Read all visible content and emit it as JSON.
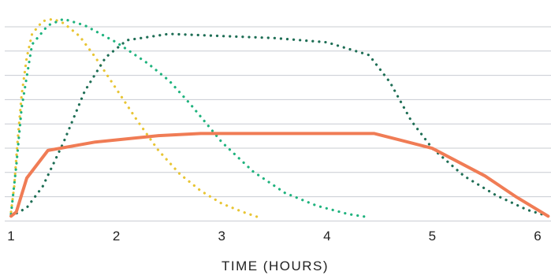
{
  "chart_data": {
    "type": "line",
    "title": "",
    "xlabel": "TIME (HOURS)",
    "ylabel": "",
    "x_ticks": [
      "1",
      "2",
      "3",
      "4",
      "5",
      "6"
    ],
    "xlim": [
      1,
      6
    ],
    "ylim": [
      0,
      10
    ],
    "grid": "horizontal",
    "legend": "none",
    "series": [
      {
        "color": "#F07C55",
        "style": "solid",
        "x": [
          1,
          1.05,
          1.15,
          1.35,
          1.8,
          2.4,
          2.8,
          3.5,
          4.2,
          4.45,
          5.0,
          5.5,
          5.8,
          6.1
        ],
        "y": [
          0.1,
          0.3,
          1.9,
          3.2,
          3.6,
          3.9,
          4.0,
          4.0,
          4.0,
          4.0,
          3.3,
          2.0,
          1.0,
          0.1
        ]
      },
      {
        "color": "#E8C534",
        "style": "dotted",
        "x": [
          1,
          1.03,
          1.06,
          1.1,
          1.15,
          1.2,
          1.3,
          1.4,
          1.5,
          1.65,
          1.8,
          2.0,
          2.2,
          2.4,
          2.6,
          2.8,
          3.0,
          3.2,
          3.35
        ],
        "y": [
          0.3,
          1.5,
          3.5,
          5.8,
          7.6,
          8.7,
          9.3,
          9.4,
          9.2,
          8.6,
          7.6,
          6.1,
          4.6,
          3.2,
          2.1,
          1.3,
          0.7,
          0.3,
          0.05
        ]
      },
      {
        "color": "#1FB37E",
        "style": "dotted",
        "x": [
          1,
          1.05,
          1.1,
          1.2,
          1.35,
          1.5,
          1.7,
          2.0,
          2.3,
          2.5,
          2.7,
          3.0,
          3.3,
          3.6,
          3.9,
          4.2,
          4.4
        ],
        "y": [
          0.2,
          2.5,
          5.2,
          8.2,
          9.1,
          9.4,
          9.1,
          8.3,
          7.3,
          6.5,
          5.4,
          3.6,
          2.2,
          1.2,
          0.6,
          0.2,
          0.05
        ]
      },
      {
        "color": "#1E6E55",
        "style": "dotted",
        "x": [
          1,
          1.15,
          1.3,
          1.5,
          1.7,
          1.9,
          2.1,
          2.5,
          3.0,
          3.5,
          4.0,
          4.4,
          4.6,
          4.8,
          5.0,
          5.3,
          5.6,
          5.9,
          6.1
        ],
        "y": [
          0.1,
          0.5,
          1.5,
          3.6,
          6.0,
          7.6,
          8.4,
          8.7,
          8.6,
          8.5,
          8.3,
          7.7,
          6.4,
          4.6,
          3.3,
          2.0,
          1.1,
          0.4,
          0.1
        ]
      }
    ]
  }
}
